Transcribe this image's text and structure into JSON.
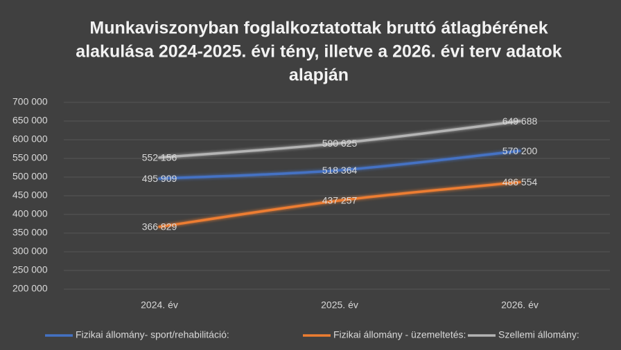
{
  "chart_data": {
    "type": "line",
    "title": [
      "Munkaviszonyban foglalkoztatottak bruttó átlagbérének",
      "alakulása 2024-2025. évi tény, illetve a 2026. évi terv adatok",
      "alapján"
    ],
    "categories": [
      "2024. év",
      "2025. év",
      "2026. év"
    ],
    "series": [
      {
        "name": "Fizikai állomány- sport/rehabilitáció:",
        "color": "#4472c4",
        "values": [
          495909,
          518364,
          570200
        ],
        "value_labels": [
          "495 909",
          "518 364",
          "570 200"
        ]
      },
      {
        "name": "Fizikai állomány - üzemeltetés:",
        "color": "#ed7d31",
        "values": [
          366829,
          437257,
          486554
        ],
        "value_labels": [
          "366 829",
          "437 257",
          "486 554"
        ]
      },
      {
        "name": "Szellemi állomány:",
        "color": "#b4b4b4",
        "values": [
          552156,
          590625,
          649688
        ],
        "value_labels": [
          "552 156",
          "590 625",
          "649 688"
        ]
      }
    ],
    "ylim": [
      200000,
      700000
    ],
    "yticks": [
      {
        "value": 200000,
        "label": "200 000"
      },
      {
        "value": 250000,
        "label": "250 000"
      },
      {
        "value": 300000,
        "label": "300 000"
      },
      {
        "value": 350000,
        "label": "350 000"
      },
      {
        "value": 400000,
        "label": "400 000"
      },
      {
        "value": 450000,
        "label": "450 000"
      },
      {
        "value": 500000,
        "label": "500 000"
      },
      {
        "value": 550000,
        "label": "550 000"
      },
      {
        "value": 600000,
        "label": "600 000"
      },
      {
        "value": 650000,
        "label": "650 000"
      },
      {
        "value": 700000,
        "label": "700 000"
      }
    ],
    "grid": true,
    "legend": "bottom"
  }
}
